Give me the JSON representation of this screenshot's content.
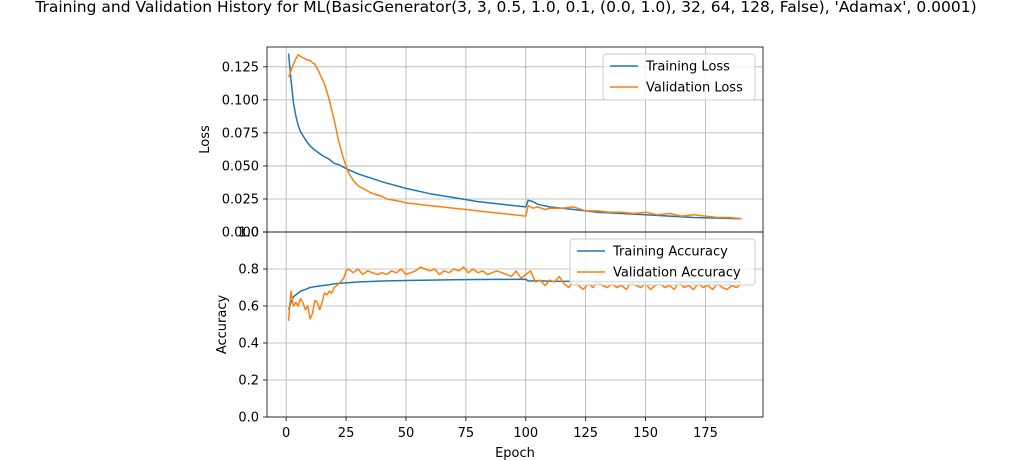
{
  "figure_title": "Training and Validation History for ML(BasicGenerator(3, 3, 0.5, 1.0, 0.1, (0.0, 1.0), 32, 64, 128, False), 'Adamax', 0.0001)",
  "colors": {
    "training": "#1f77b4",
    "validation": "#ff7f0e",
    "grid": "#b0b0b0"
  },
  "chart_data": [
    {
      "type": "line",
      "title": "Training and Validation History for ML(BasicGenerator(3, 3, 0.5, 1.0, 0.1, (0.0, 1.0), 32, 64, 128, False), 'Adamax', 0.0001)",
      "xlabel": "",
      "ylabel": "Loss",
      "xlim": [
        -8,
        199
      ],
      "ylim": [
        0.0,
        0.14
      ],
      "yticks": [
        0.0,
        0.025,
        0.05,
        0.075,
        0.1,
        0.125
      ],
      "ytick_labels": [
        "0.000",
        "0.025",
        "0.050",
        "0.075",
        "0.100",
        "0.125"
      ],
      "grid": true,
      "legend": "top-right",
      "series": [
        {
          "name": "Training Loss",
          "x": [
            1,
            2,
            3,
            4,
            5,
            6,
            8,
            10,
            12,
            15,
            18,
            20,
            22,
            25,
            30,
            35,
            40,
            50,
            60,
            70,
            80,
            90,
            100,
            101,
            103,
            105,
            110,
            120,
            130,
            140,
            150,
            160,
            170,
            180,
            190
          ],
          "y": [
            0.135,
            0.115,
            0.098,
            0.088,
            0.081,
            0.076,
            0.07,
            0.065,
            0.062,
            0.058,
            0.055,
            0.052,
            0.051,
            0.048,
            0.044,
            0.041,
            0.038,
            0.033,
            0.029,
            0.026,
            0.023,
            0.021,
            0.019,
            0.024,
            0.023,
            0.021,
            0.019,
            0.017,
            0.015,
            0.014,
            0.013,
            0.012,
            0.011,
            0.0105,
            0.01
          ]
        },
        {
          "name": "Validation Loss",
          "x": [
            1,
            2,
            3,
            4,
            5,
            6,
            7,
            8,
            9,
            10,
            11,
            12,
            14,
            16,
            18,
            20,
            22,
            24,
            25,
            26,
            27,
            28,
            30,
            32,
            35,
            38,
            40,
            42,
            45,
            48,
            50,
            55,
            60,
            65,
            70,
            75,
            80,
            85,
            90,
            95,
            100,
            101,
            103,
            105,
            108,
            110,
            115,
            120,
            125,
            130,
            135,
            140,
            145,
            150,
            155,
            160,
            165,
            170,
            175,
            180,
            185,
            190
          ],
          "y": [
            0.117,
            0.122,
            0.127,
            0.131,
            0.134,
            0.133,
            0.132,
            0.131,
            0.13,
            0.13,
            0.128,
            0.127,
            0.12,
            0.112,
            0.1,
            0.085,
            0.068,
            0.055,
            0.05,
            0.045,
            0.042,
            0.039,
            0.035,
            0.033,
            0.03,
            0.028,
            0.027,
            0.025,
            0.024,
            0.023,
            0.022,
            0.021,
            0.02,
            0.019,
            0.018,
            0.017,
            0.016,
            0.015,
            0.014,
            0.013,
            0.012,
            0.02,
            0.018,
            0.019,
            0.017,
            0.018,
            0.018,
            0.019,
            0.016,
            0.016,
            0.015,
            0.015,
            0.014,
            0.015,
            0.013,
            0.014,
            0.012,
            0.013,
            0.012,
            0.011,
            0.011,
            0.01
          ]
        }
      ]
    },
    {
      "type": "line",
      "title": "",
      "xlabel": "Epoch",
      "ylabel": "Accuracy",
      "xlim": [
        -8,
        199
      ],
      "ylim": [
        0.0,
        1.0
      ],
      "xticks": [
        0,
        25,
        50,
        75,
        100,
        125,
        150,
        175
      ],
      "xtick_labels": [
        "0",
        "25",
        "50",
        "75",
        "100",
        "125",
        "150",
        "175"
      ],
      "yticks": [
        0.0,
        0.2,
        0.4,
        0.6,
        0.8,
        1.0
      ],
      "ytick_labels": [
        "0.0",
        "0.2",
        "0.4",
        "0.6",
        "0.8",
        "1.0"
      ],
      "grid": true,
      "legend": "top-right",
      "series": [
        {
          "name": "Training Accuracy",
          "x": [
            1,
            2,
            3,
            4,
            5,
            6,
            8,
            10,
            12,
            15,
            18,
            20,
            25,
            30,
            40,
            50,
            60,
            70,
            80,
            90,
            100,
            101,
            105,
            110,
            120,
            130,
            140,
            150,
            160,
            170,
            180,
            190
          ],
          "y": [
            0.58,
            0.62,
            0.65,
            0.66,
            0.67,
            0.68,
            0.69,
            0.7,
            0.705,
            0.71,
            0.715,
            0.72,
            0.725,
            0.73,
            0.735,
            0.738,
            0.74,
            0.742,
            0.743,
            0.744,
            0.745,
            0.735,
            0.736,
            0.734,
            0.733,
            0.732,
            0.732,
            0.731,
            0.731,
            0.73,
            0.73,
            0.73
          ]
        },
        {
          "name": "Validation Accuracy",
          "x": [
            1,
            2,
            3,
            4,
            5,
            6,
            7,
            8,
            9,
            10,
            11,
            12,
            13,
            14,
            15,
            16,
            17,
            18,
            19,
            20,
            22,
            24,
            25,
            26,
            28,
            30,
            32,
            34,
            36,
            38,
            40,
            42,
            44,
            46,
            48,
            50,
            52,
            54,
            56,
            58,
            60,
            62,
            64,
            66,
            68,
            70,
            72,
            74,
            76,
            78,
            80,
            82,
            84,
            86,
            88,
            90,
            92,
            94,
            96,
            98,
            100,
            102,
            104,
            106,
            108,
            110,
            112,
            114,
            116,
            118,
            120,
            122,
            124,
            126,
            128,
            130,
            132,
            134,
            136,
            138,
            140,
            142,
            144,
            146,
            148,
            150,
            152,
            154,
            156,
            158,
            160,
            162,
            164,
            166,
            168,
            170,
            172,
            174,
            176,
            178,
            180,
            182,
            184,
            186,
            188,
            190
          ],
          "y": [
            0.52,
            0.68,
            0.6,
            0.62,
            0.6,
            0.64,
            0.62,
            0.58,
            0.6,
            0.53,
            0.56,
            0.63,
            0.62,
            0.58,
            0.62,
            0.67,
            0.66,
            0.68,
            0.67,
            0.7,
            0.72,
            0.75,
            0.79,
            0.8,
            0.78,
            0.8,
            0.77,
            0.79,
            0.78,
            0.77,
            0.78,
            0.77,
            0.79,
            0.78,
            0.8,
            0.77,
            0.78,
            0.79,
            0.81,
            0.8,
            0.79,
            0.8,
            0.77,
            0.79,
            0.78,
            0.8,
            0.79,
            0.81,
            0.78,
            0.8,
            0.78,
            0.79,
            0.77,
            0.78,
            0.79,
            0.78,
            0.77,
            0.76,
            0.79,
            0.75,
            0.77,
            0.79,
            0.73,
            0.74,
            0.71,
            0.74,
            0.73,
            0.76,
            0.72,
            0.7,
            0.74,
            0.71,
            0.69,
            0.72,
            0.7,
            0.73,
            0.71,
            0.7,
            0.72,
            0.7,
            0.71,
            0.69,
            0.73,
            0.71,
            0.7,
            0.72,
            0.69,
            0.71,
            0.72,
            0.7,
            0.71,
            0.69,
            0.73,
            0.7,
            0.71,
            0.69,
            0.72,
            0.7,
            0.71,
            0.69,
            0.72,
            0.7,
            0.69,
            0.71,
            0.7,
            0.72
          ]
        }
      ]
    }
  ]
}
